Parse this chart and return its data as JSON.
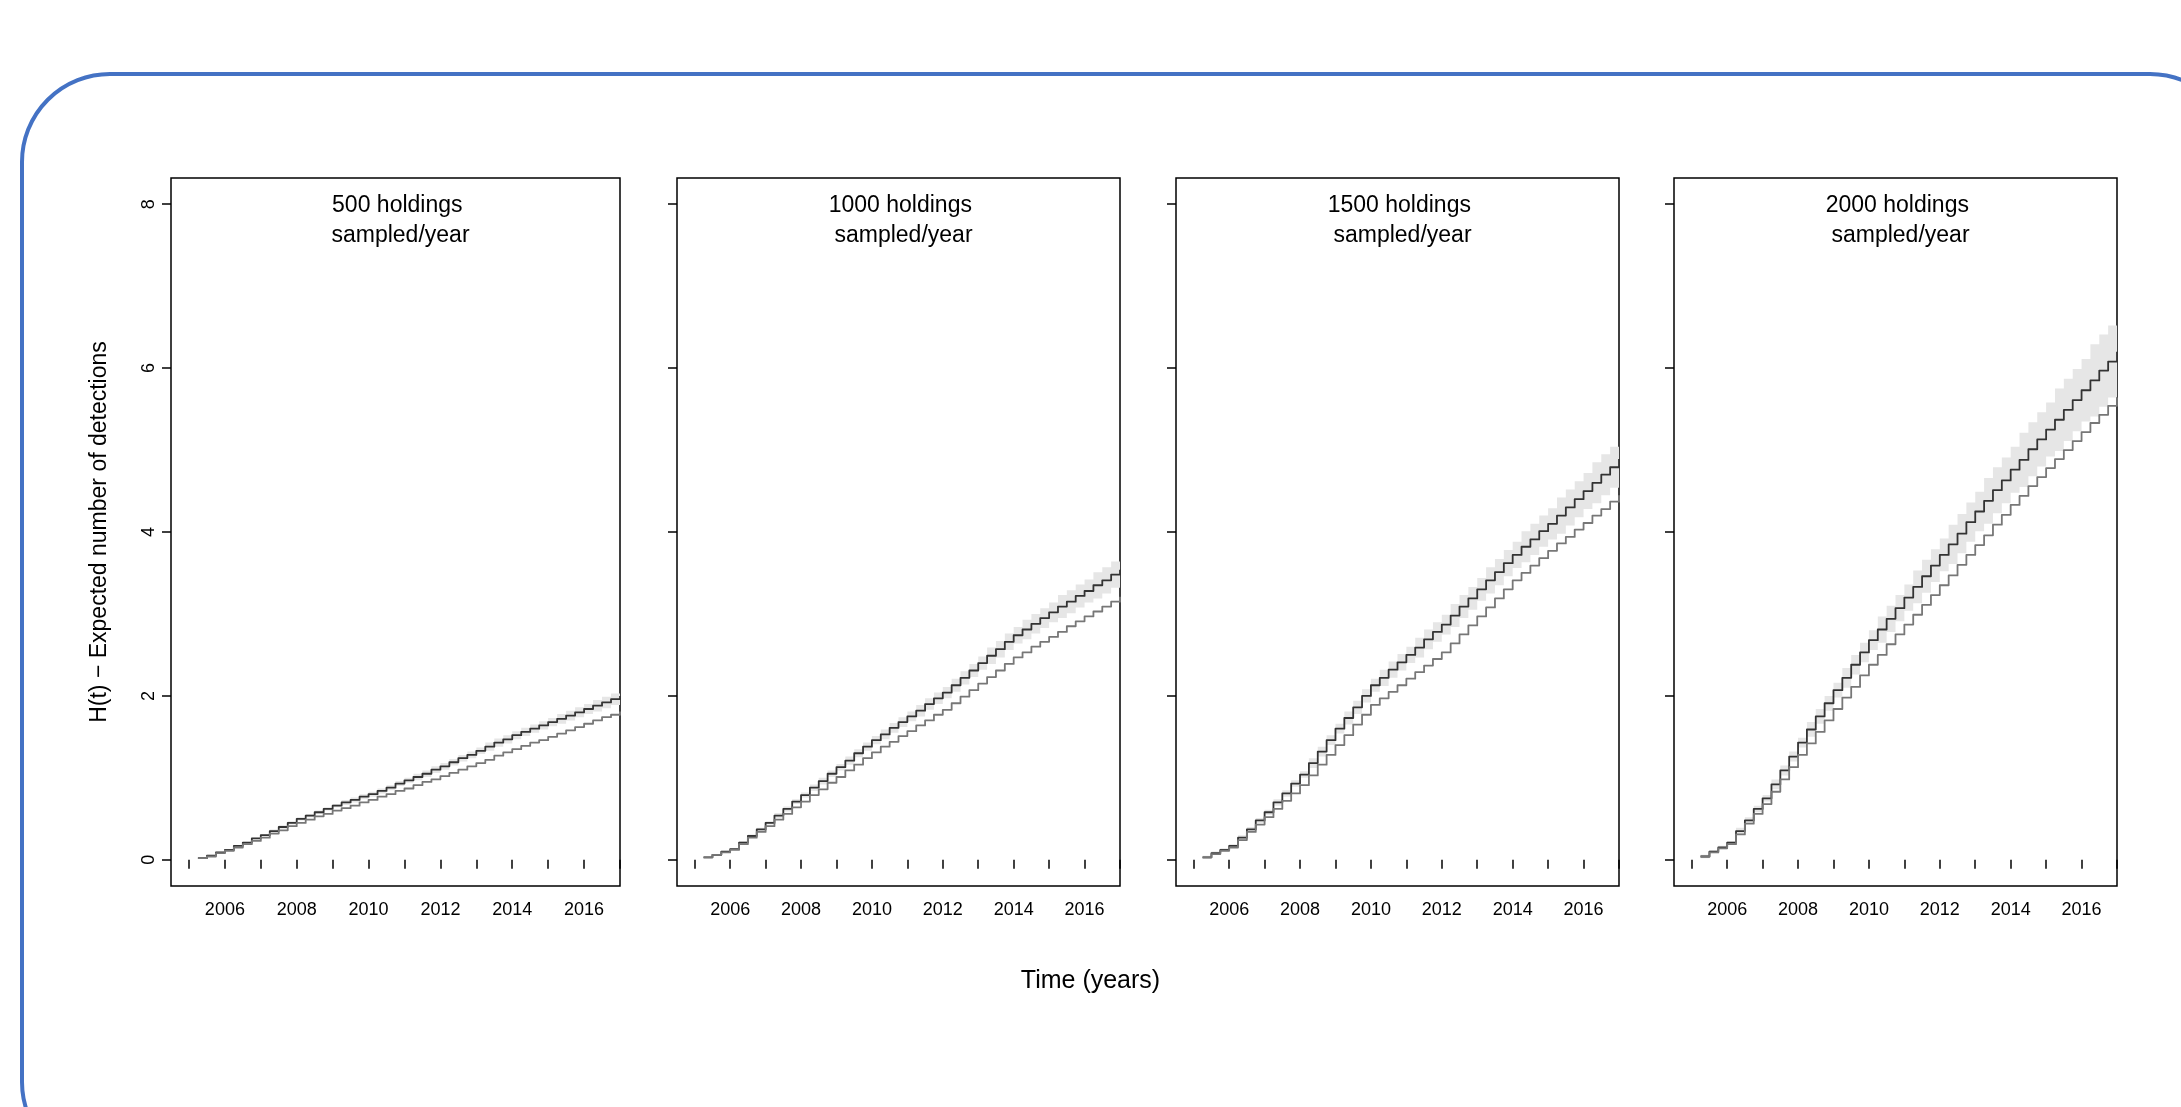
{
  "chart_data": [
    {
      "type": "step",
      "title": "500 holdings sampled/year",
      "ylabel": "H(t) − Expected number of detections",
      "x": [
        2005.25,
        2005.5,
        2005.75,
        2006,
        2006.25,
        2006.5,
        2006.75,
        2007,
        2007.25,
        2007.5,
        2007.75,
        2008,
        2008.25,
        2008.5,
        2008.75,
        2009,
        2009.25,
        2009.5,
        2009.75,
        2010,
        2010.25,
        2010.5,
        2010.75,
        2011,
        2011.25,
        2011.5,
        2011.75,
        2012,
        2012.25,
        2012.5,
        2012.75,
        2013,
        2013.25,
        2013.5,
        2013.75,
        2014,
        2014.25,
        2014.5,
        2014.75,
        2015,
        2015.25,
        2015.5,
        2015.75,
        2016,
        2016.25,
        2016.5,
        2016.75,
        2017
      ],
      "series": [
        {
          "color": "#333333",
          "values": [
            0.02,
            0.05,
            0.09,
            0.12,
            0.17,
            0.21,
            0.26,
            0.3,
            0.35,
            0.4,
            0.45,
            0.5,
            0.54,
            0.58,
            0.62,
            0.66,
            0.7,
            0.73,
            0.77,
            0.8,
            0.84,
            0.88,
            0.93,
            0.97,
            1.01,
            1.05,
            1.1,
            1.14,
            1.19,
            1.24,
            1.28,
            1.33,
            1.38,
            1.43,
            1.47,
            1.52,
            1.56,
            1.6,
            1.64,
            1.68,
            1.72,
            1.76,
            1.8,
            1.84,
            1.88,
            1.92,
            1.96,
            2.0
          ],
          "lower": [
            0.01,
            0.04,
            0.08,
            0.11,
            0.16,
            0.2,
            0.25,
            0.29,
            0.33,
            0.38,
            0.43,
            0.48,
            0.52,
            0.56,
            0.6,
            0.64,
            0.67,
            0.7,
            0.74,
            0.77,
            0.81,
            0.85,
            0.9,
            0.94,
            0.97,
            1.01,
            1.06,
            1.1,
            1.15,
            1.2,
            1.24,
            1.29,
            1.33,
            1.38,
            1.42,
            1.47,
            1.51,
            1.55,
            1.59,
            1.63,
            1.66,
            1.7,
            1.74,
            1.78,
            1.81,
            1.85,
            1.89,
            1.93
          ],
          "upper": [
            0.03,
            0.06,
            0.1,
            0.13,
            0.18,
            0.22,
            0.27,
            0.31,
            0.37,
            0.42,
            0.47,
            0.52,
            0.56,
            0.6,
            0.64,
            0.68,
            0.73,
            0.76,
            0.8,
            0.83,
            0.87,
            0.91,
            0.96,
            1.0,
            1.05,
            1.09,
            1.14,
            1.18,
            1.23,
            1.28,
            1.32,
            1.37,
            1.43,
            1.48,
            1.52,
            1.57,
            1.61,
            1.65,
            1.69,
            1.73,
            1.78,
            1.82,
            1.86,
            1.9,
            1.95,
            1.99,
            2.03,
            2.07
          ]
        },
        {
          "color": "#777777",
          "values": [
            0.02,
            0.04,
            0.08,
            0.11,
            0.15,
            0.19,
            0.23,
            0.27,
            0.32,
            0.36,
            0.41,
            0.45,
            0.49,
            0.53,
            0.56,
            0.6,
            0.63,
            0.66,
            0.7,
            0.73,
            0.77,
            0.8,
            0.84,
            0.87,
            0.91,
            0.95,
            0.98,
            1.02,
            1.06,
            1.1,
            1.14,
            1.18,
            1.22,
            1.27,
            1.31,
            1.35,
            1.39,
            1.43,
            1.46,
            1.5,
            1.54,
            1.58,
            1.62,
            1.66,
            1.7,
            1.74,
            1.77,
            1.81
          ]
        }
      ],
      "xlim": [
        2004.5,
        2017
      ],
      "ylim": [
        -0.32,
        8.32
      ],
      "xticks": [
        {
          "value": 2005,
          "label": null
        },
        2006,
        {
          "value": 2007,
          "label": null
        },
        2008,
        {
          "value": 2009,
          "label": null
        },
        2010,
        {
          "value": 2011,
          "label": null
        },
        2012,
        {
          "value": 2013,
          "label": null
        },
        2014,
        {
          "value": 2015,
          "label": null
        },
        2016,
        {
          "value": 2017,
          "label": null
        }
      ],
      "yticks": [
        0,
        2,
        4,
        6,
        8
      ]
    },
    {
      "type": "step",
      "title": "1000 holdings sampled/year",
      "xlabel": "Time (years)",
      "x": [
        2005.25,
        2005.5,
        2005.75,
        2006,
        2006.25,
        2006.5,
        2006.75,
        2007,
        2007.25,
        2007.5,
        2007.75,
        2008,
        2008.25,
        2008.5,
        2008.75,
        2009,
        2009.25,
        2009.5,
        2009.75,
        2010,
        2010.25,
        2010.5,
        2010.75,
        2011,
        2011.25,
        2011.5,
        2011.75,
        2012,
        2012.25,
        2012.5,
        2012.75,
        2013,
        2013.25,
        2013.5,
        2013.75,
        2014,
        2014.25,
        2014.5,
        2014.75,
        2015,
        2015.25,
        2015.5,
        2015.75,
        2016,
        2016.25,
        2016.5,
        2016.75,
        2017
      ],
      "series": [
        {
          "color": "#333333",
          "values": [
            0.03,
            0.06,
            0.1,
            0.13,
            0.21,
            0.29,
            0.37,
            0.45,
            0.54,
            0.62,
            0.71,
            0.79,
            0.88,
            0.96,
            1.05,
            1.13,
            1.21,
            1.3,
            1.38,
            1.46,
            1.53,
            1.61,
            1.68,
            1.75,
            1.82,
            1.9,
            1.97,
            2.04,
            2.13,
            2.22,
            2.31,
            2.4,
            2.49,
            2.57,
            2.66,
            2.74,
            2.81,
            2.88,
            2.95,
            3.02,
            3.09,
            3.15,
            3.22,
            3.28,
            3.35,
            3.41,
            3.48,
            3.54
          ],
          "lower": [
            0.02,
            0.05,
            0.09,
            0.12,
            0.19,
            0.27,
            0.35,
            0.43,
            0.51,
            0.59,
            0.68,
            0.76,
            0.84,
            0.92,
            1.01,
            1.09,
            1.16,
            1.25,
            1.33,
            1.41,
            1.47,
            1.55,
            1.62,
            1.69,
            1.75,
            1.83,
            1.9,
            1.97,
            2.05,
            2.14,
            2.23,
            2.32,
            2.39,
            2.47,
            2.56,
            2.64,
            2.69,
            2.76,
            2.83,
            2.9,
            2.95,
            3.01,
            3.08,
            3.14,
            3.19,
            3.25,
            3.32,
            3.38
          ],
          "upper": [
            0.04,
            0.07,
            0.11,
            0.14,
            0.23,
            0.31,
            0.39,
            0.47,
            0.57,
            0.65,
            0.74,
            0.82,
            0.92,
            1.0,
            1.09,
            1.17,
            1.26,
            1.35,
            1.43,
            1.51,
            1.59,
            1.67,
            1.74,
            1.81,
            1.89,
            1.97,
            2.04,
            2.11,
            2.21,
            2.3,
            2.39,
            2.48,
            2.59,
            2.67,
            2.76,
            2.84,
            2.93,
            3.0,
            3.07,
            3.14,
            3.23,
            3.29,
            3.36,
            3.42,
            3.51,
            3.57,
            3.64,
            3.7
          ]
        },
        {
          "color": "#777777",
          "values": [
            0.03,
            0.06,
            0.09,
            0.12,
            0.19,
            0.27,
            0.34,
            0.41,
            0.49,
            0.56,
            0.64,
            0.71,
            0.79,
            0.86,
            0.94,
            1.01,
            1.09,
            1.16,
            1.24,
            1.31,
            1.38,
            1.44,
            1.51,
            1.57,
            1.64,
            1.7,
            1.77,
            1.83,
            1.91,
            1.99,
            2.07,
            2.15,
            2.23,
            2.31,
            2.39,
            2.47,
            2.53,
            2.6,
            2.66,
            2.72,
            2.78,
            2.85,
            2.91,
            2.97,
            3.03,
            3.09,
            3.15,
            3.21
          ]
        }
      ],
      "xlim": [
        2004.5,
        2017
      ],
      "ylim": [
        -0.32,
        8.32
      ],
      "xticks": [
        {
          "value": 2005,
          "label": null
        },
        2006,
        {
          "value": 2007,
          "label": null
        },
        2008,
        {
          "value": 2009,
          "label": null
        },
        2010,
        {
          "value": 2011,
          "label": null
        },
        2012,
        {
          "value": 2013,
          "label": null
        },
        2014,
        {
          "value": 2015,
          "label": null
        },
        2016,
        {
          "value": 2017,
          "label": null
        }
      ],
      "yticks": [
        0,
        2,
        4,
        6,
        8
      ],
      "tick_labels": "x"
    },
    {
      "type": "step",
      "title": "1500 holdings sampled/year",
      "x": [
        2005.25,
        2005.5,
        2005.75,
        2006,
        2006.25,
        2006.5,
        2006.75,
        2007,
        2007.25,
        2007.5,
        2007.75,
        2008,
        2008.25,
        2008.5,
        2008.75,
        2009,
        2009.25,
        2009.5,
        2009.75,
        2010,
        2010.25,
        2010.5,
        2010.75,
        2011,
        2011.25,
        2011.5,
        2011.75,
        2012,
        2012.25,
        2012.5,
        2012.75,
        2013,
        2013.25,
        2013.5,
        2013.75,
        2014,
        2014.25,
        2014.5,
        2014.75,
        2015,
        2015.25,
        2015.5,
        2015.75,
        2016,
        2016.25,
        2016.5,
        2016.75,
        2017
      ],
      "series": [
        {
          "color": "#333333",
          "values": [
            0.03,
            0.08,
            0.12,
            0.17,
            0.27,
            0.37,
            0.48,
            0.58,
            0.7,
            0.81,
            0.93,
            1.04,
            1.18,
            1.32,
            1.46,
            1.6,
            1.73,
            1.86,
            2.0,
            2.13,
            2.22,
            2.32,
            2.41,
            2.5,
            2.59,
            2.69,
            2.78,
            2.87,
            2.98,
            3.09,
            3.19,
            3.3,
            3.41,
            3.51,
            3.62,
            3.72,
            3.82,
            3.91,
            4.01,
            4.1,
            4.2,
            4.3,
            4.4,
            4.5,
            4.6,
            4.7,
            4.79,
            4.89
          ],
          "lower": [
            0.01,
            0.06,
            0.1,
            0.15,
            0.24,
            0.34,
            0.45,
            0.55,
            0.66,
            0.77,
            0.89,
            1.0,
            1.12,
            1.26,
            1.4,
            1.54,
            1.65,
            1.78,
            1.92,
            2.05,
            2.12,
            2.22,
            2.31,
            2.4,
            2.47,
            2.57,
            2.66,
            2.75,
            2.84,
            2.95,
            3.05,
            3.16,
            3.25,
            3.35,
            3.46,
            3.56,
            3.63,
            3.72,
            3.82,
            3.91,
            3.98,
            4.08,
            4.18,
            4.28,
            4.35,
            4.45,
            4.54,
            4.64
          ],
          "upper": [
            0.05,
            0.1,
            0.14,
            0.19,
            0.3,
            0.4,
            0.51,
            0.61,
            0.74,
            0.85,
            0.97,
            1.08,
            1.24,
            1.38,
            1.52,
            1.66,
            1.81,
            1.94,
            2.08,
            2.21,
            2.32,
            2.42,
            2.51,
            2.6,
            2.71,
            2.81,
            2.9,
            2.99,
            3.12,
            3.23,
            3.33,
            3.44,
            3.57,
            3.67,
            3.78,
            3.88,
            4.01,
            4.1,
            4.2,
            4.29,
            4.42,
            4.52,
            4.62,
            4.72,
            4.85,
            4.95,
            5.04,
            5.14
          ]
        },
        {
          "color": "#777777",
          "values": [
            0.03,
            0.07,
            0.11,
            0.15,
            0.24,
            0.34,
            0.43,
            0.52,
            0.62,
            0.72,
            0.81,
            0.91,
            1.03,
            1.16,
            1.28,
            1.4,
            1.52,
            1.65,
            1.77,
            1.89,
            1.97,
            2.05,
            2.13,
            2.21,
            2.29,
            2.37,
            2.45,
            2.53,
            2.64,
            2.75,
            2.86,
            2.97,
            3.08,
            3.19,
            3.3,
            3.41,
            3.5,
            3.59,
            3.68,
            3.77,
            3.86,
            3.94,
            4.03,
            4.11,
            4.2,
            4.28,
            4.37,
            4.45
          ]
        }
      ],
      "xlim": [
        2004.5,
        2017
      ],
      "ylim": [
        -0.32,
        8.32
      ],
      "xticks": [
        {
          "value": 2005,
          "label": null
        },
        2006,
        {
          "value": 2007,
          "label": null
        },
        2008,
        {
          "value": 2009,
          "label": null
        },
        2010,
        {
          "value": 2011,
          "label": null
        },
        2012,
        {
          "value": 2013,
          "label": null
        },
        2014,
        {
          "value": 2015,
          "label": null
        },
        2016,
        {
          "value": 2017,
          "label": null
        }
      ],
      "yticks": [
        0,
        2,
        4,
        6,
        8
      ],
      "tick_labels": "x"
    },
    {
      "type": "step",
      "title": "2000 holdings sampled/year",
      "x": [
        2005.25,
        2005.5,
        2005.75,
        2006,
        2006.25,
        2006.5,
        2006.75,
        2007,
        2007.25,
        2007.5,
        2007.75,
        2008,
        2008.25,
        2008.5,
        2008.75,
        2009,
        2009.25,
        2009.5,
        2009.75,
        2010,
        2010.25,
        2010.5,
        2010.75,
        2011,
        2011.25,
        2011.5,
        2011.75,
        2012,
        2012.25,
        2012.5,
        2012.75,
        2013,
        2013.25,
        2013.5,
        2013.75,
        2014,
        2014.25,
        2014.5,
        2014.75,
        2015,
        2015.25,
        2015.5,
        2015.75,
        2016,
        2016.25,
        2016.5,
        2016.75,
        2017
      ],
      "series": [
        {
          "color": "#333333",
          "values": [
            0.04,
            0.1,
            0.15,
            0.21,
            0.35,
            0.48,
            0.62,
            0.75,
            0.92,
            1.09,
            1.26,
            1.43,
            1.59,
            1.75,
            1.91,
            2.07,
            2.22,
            2.38,
            2.53,
            2.68,
            2.81,
            2.94,
            3.07,
            3.2,
            3.33,
            3.46,
            3.59,
            3.72,
            3.85,
            3.98,
            4.12,
            4.25,
            4.38,
            4.51,
            4.63,
            4.76,
            4.88,
            5.01,
            5.13,
            5.25,
            5.37,
            5.49,
            5.61,
            5.73,
            5.85,
            5.97,
            6.08,
            6.2
          ],
          "lower": [
            0.02,
            0.08,
            0.13,
            0.19,
            0.31,
            0.44,
            0.58,
            0.71,
            0.86,
            1.03,
            1.2,
            1.37,
            1.5,
            1.66,
            1.82,
            1.98,
            2.1,
            2.26,
            2.41,
            2.56,
            2.65,
            2.78,
            2.91,
            3.04,
            3.13,
            3.26,
            3.39,
            3.52,
            3.61,
            3.74,
            3.88,
            4.01,
            4.1,
            4.23,
            4.35,
            4.48,
            4.55,
            4.68,
            4.8,
            4.92,
            4.99,
            5.11,
            5.23,
            5.35,
            5.41,
            5.53,
            5.64,
            5.76
          ],
          "upper": [
            0.06,
            0.12,
            0.17,
            0.23,
            0.39,
            0.52,
            0.66,
            0.79,
            0.98,
            1.15,
            1.32,
            1.49,
            1.68,
            1.84,
            2.0,
            2.16,
            2.34,
            2.5,
            2.65,
            2.8,
            2.97,
            3.1,
            3.23,
            3.36,
            3.53,
            3.66,
            3.79,
            3.92,
            4.09,
            4.22,
            4.36,
            4.49,
            4.66,
            4.79,
            4.91,
            5.04,
            5.21,
            5.34,
            5.46,
            5.58,
            5.75,
            5.87,
            5.99,
            6.11,
            6.29,
            6.41,
            6.52,
            6.64
          ]
        },
        {
          "color": "#777777",
          "values": [
            0.04,
            0.09,
            0.14,
            0.19,
            0.31,
            0.44,
            0.56,
            0.68,
            0.83,
            0.98,
            1.13,
            1.28,
            1.42,
            1.56,
            1.7,
            1.84,
            1.98,
            2.11,
            2.25,
            2.38,
            2.5,
            2.63,
            2.75,
            2.87,
            2.99,
            3.11,
            3.23,
            3.35,
            3.47,
            3.6,
            3.72,
            3.84,
            3.96,
            4.09,
            4.21,
            4.33,
            4.44,
            4.56,
            4.67,
            4.78,
            4.89,
            5.0,
            5.11,
            5.22,
            5.33,
            5.43,
            5.54,
            5.64
          ]
        }
      ],
      "xlim": [
        2004.5,
        2017
      ],
      "ylim": [
        -0.32,
        8.32
      ],
      "xticks": [
        {
          "value": 2005,
          "label": null
        },
        2006,
        {
          "value": 2007,
          "label": null
        },
        2008,
        {
          "value": 2009,
          "label": null
        },
        2010,
        {
          "value": 2011,
          "label": null
        },
        2012,
        {
          "value": 2013,
          "label": null
        },
        2014,
        {
          "value": 2015,
          "label": null
        },
        2016,
        {
          "value": 2017,
          "label": null
        }
      ],
      "yticks": [
        0,
        2,
        4,
        6,
        8
      ],
      "tick_labels": "x"
    }
  ]
}
